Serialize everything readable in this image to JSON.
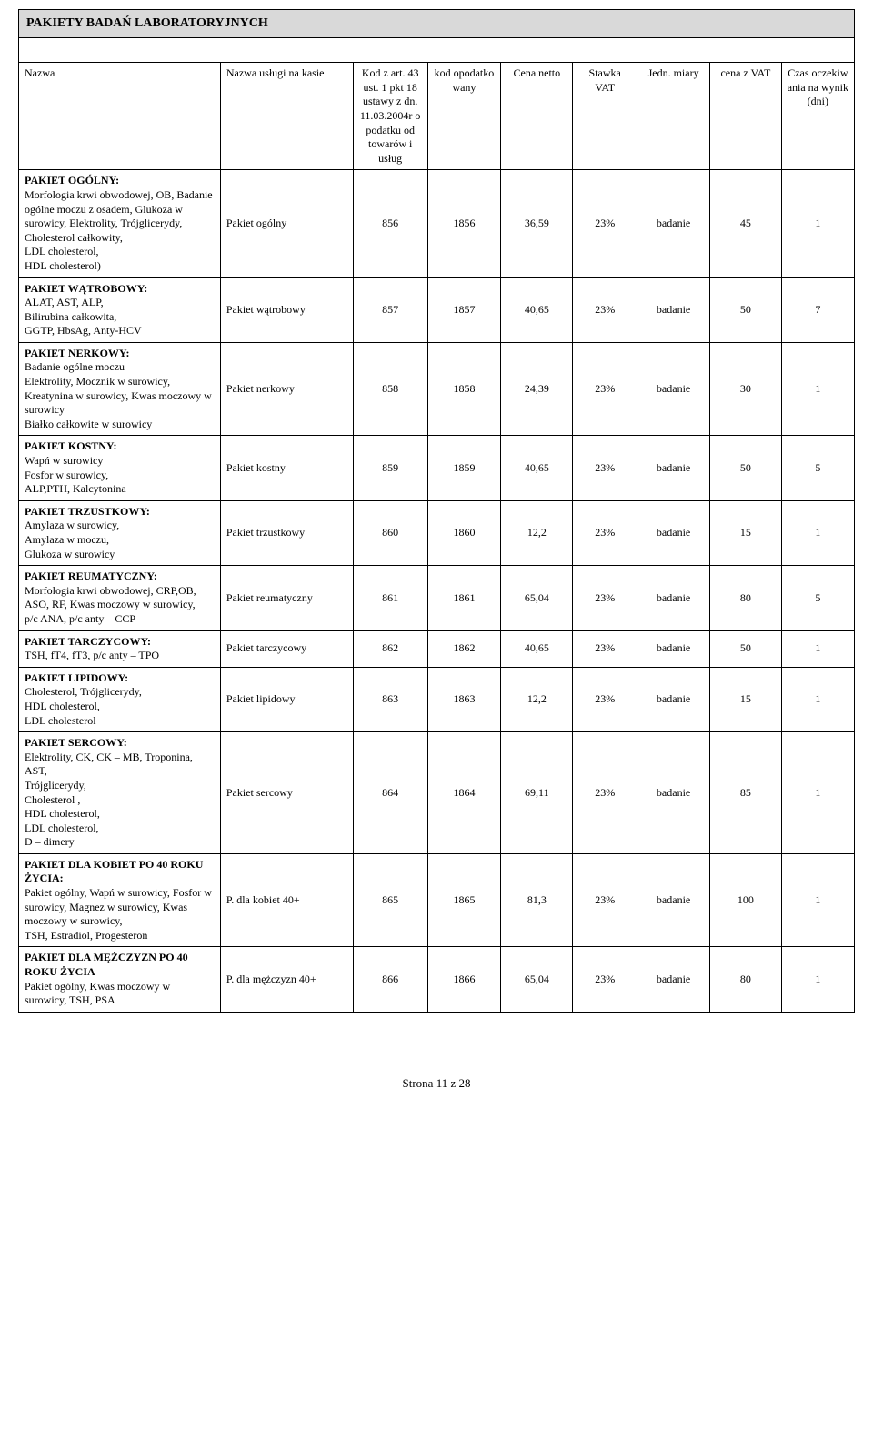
{
  "section_title": "PAKIETY BADAŃ LABORATORYJNYCH",
  "headers": {
    "nazwa": "Nazwa",
    "service": "Nazwa usługi na kasie",
    "kod": "Kod z art. 43 ust. 1 pkt 18 ustawy z dn. 11.03.2004r o podatku od towarów i usług",
    "kodop": "kod opodatko wany",
    "cena": "Cena netto",
    "vat": "Stawka VAT",
    "miary": "Jedn. miary",
    "zvat": "cena z VAT",
    "czas": "Czas oczekiw ania na wynik (dni)"
  },
  "rows": [
    {
      "nazwa_title": "PAKIET OGÓLNY:",
      "nazwa_body": "Morfologia krwi obwodowej, OB, Badanie ogólne moczu z osadem, Glukoza w surowicy, Elektrolity, Trójglicerydy,\nCholesterol całkowity,\nLDL cholesterol,\nHDL cholesterol)",
      "service": "Pakiet ogólny",
      "kod": "856",
      "kodop": "1856",
      "cena": "36,59",
      "vat": "23%",
      "miary": "badanie",
      "zvat": "45",
      "czas": "1"
    },
    {
      "nazwa_title": "PAKIET WĄTROBOWY:",
      "nazwa_body": "ALAT, AST, ALP,\nBilirubina całkowita,\nGGTP, HbsAg, Anty-HCV",
      "service": "Pakiet wątrobowy",
      "kod": "857",
      "kodop": "1857",
      "cena": "40,65",
      "vat": "23%",
      "miary": "badanie",
      "zvat": "50",
      "czas": "7"
    },
    {
      "nazwa_title": "PAKIET NERKOWY:",
      "nazwa_body": "Badanie ogólne moczu\nElektrolity, Mocznik w surowicy, Kreatynina w surowicy, Kwas moczowy w surowicy\nBiałko całkowite w surowicy",
      "service": "Pakiet nerkowy",
      "kod": "858",
      "kodop": "1858",
      "cena": "24,39",
      "vat": "23%",
      "miary": "badanie",
      "zvat": "30",
      "czas": "1"
    },
    {
      "nazwa_title": "PAKIET KOSTNY:",
      "nazwa_body": "Wapń w surowicy\nFosfor w surowicy,\nALP,PTH, Kalcytonina",
      "service": "Pakiet  kostny",
      "kod": "859",
      "kodop": "1859",
      "cena": "40,65",
      "vat": "23%",
      "miary": "badanie",
      "zvat": "50",
      "czas": "5"
    },
    {
      "nazwa_title": "PAKIET TRZUSTKOWY:",
      "nazwa_body": "Amylaza w surowicy,\nAmylaza w moczu,\nGlukoza w surowicy",
      "service": "Pakiet trzustkowy",
      "kod": "860",
      "kodop": "1860",
      "cena": "12,2",
      "vat": "23%",
      "miary": "badanie",
      "zvat": "15",
      "czas": "1"
    },
    {
      "nazwa_title": "PAKIET REUMATYCZNY:",
      "nazwa_body": "Morfologia krwi obwodowej, CRP,OB, ASO, RF, Kwas moczowy w surowicy,\np/c ANA, p/c anty – CCP",
      "service": "Pakiet reumatyczny",
      "kod": "861",
      "kodop": "1861",
      "cena": "65,04",
      "vat": "23%",
      "miary": "badanie",
      "zvat": "80",
      "czas": "5"
    },
    {
      "nazwa_title": "PAKIET TARCZYCOWY:",
      "nazwa_body": "TSH, fT4, fT3, p/c anty – TPO",
      "service": "Pakiet tarczycowy",
      "kod": "862",
      "kodop": "1862",
      "cena": "40,65",
      "vat": "23%",
      "miary": "badanie",
      "zvat": "50",
      "czas": "1"
    },
    {
      "nazwa_title": "PAKIET LIPIDOWY:",
      "nazwa_body": "Cholesterol, Trójglicerydy,\nHDL cholesterol,\nLDL cholesterol",
      "service": "Pakiet lipidowy",
      "kod": "863",
      "kodop": "1863",
      "cena": "12,2",
      "vat": "23%",
      "miary": "badanie",
      "zvat": "15",
      "czas": "1"
    },
    {
      "nazwa_title": "PAKIET SERCOWY:",
      "nazwa_body": "Elektrolity, CK, CK – MB, Troponina, AST,\nTrójglicerydy,\nCholesterol ,\nHDL cholesterol,\nLDL cholesterol,\nD – dimery",
      "service": "Pakiet sercowy",
      "kod": "864",
      "kodop": "1864",
      "cena": "69,11",
      "vat": "23%",
      "miary": "badanie",
      "zvat": "85",
      "czas": "1"
    },
    {
      "nazwa_title": "PAKIET DLA KOBIET PO 40 ROKU ŻYCIA:",
      "nazwa_body": "Pakiet ogólny, Wapń w surowicy, Fosfor w surowicy, Magnez w surowicy, Kwas moczowy w surowicy,\nTSH, Estradiol, Progesteron",
      "service": "P. dla kobiet 40+",
      "kod": "865",
      "kodop": "1865",
      "cena": "81,3",
      "vat": "23%",
      "miary": "badanie",
      "zvat": "100",
      "czas": "1"
    },
    {
      "nazwa_title": "PAKIET DLA MĘŻCZYZN PO 40 ROKU ŻYCIA",
      "nazwa_body": "Pakiet ogólny, Kwas moczowy w surowicy, TSH, PSA",
      "service": "P. dla mężczyzn 40+",
      "kod": "866",
      "kodop": "1866",
      "cena": "65,04",
      "vat": "23%",
      "miary": "badanie",
      "zvat": "80",
      "czas": "1"
    }
  ],
  "footer": "Strona 11 z 28"
}
